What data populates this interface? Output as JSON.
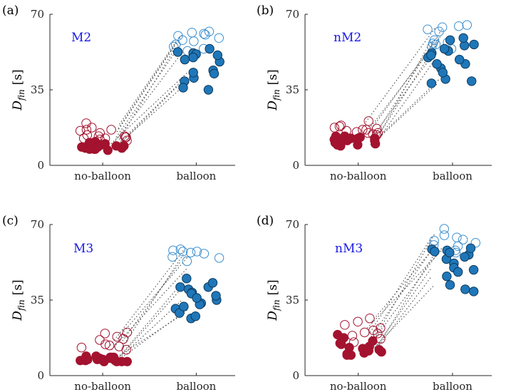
{
  "figure": {
    "colors": {
      "red_fill": "#a3122e",
      "red_edge": "#a3122e",
      "blue_fill": "#1f77b9",
      "blue_edge": "#0e3a5c",
      "hollow_blue": "#3a8fd0",
      "link": "#555555",
      "title": "#1a1ae6"
    }
  },
  "chart_data": [
    {
      "type": "scatter",
      "panel_label": "(a)",
      "title": "M2",
      "ylabel": "D",
      "ylabel_sub": "fin",
      "ylabel_unit": "[s]",
      "categories": [
        "no-balloon",
        "balloon"
      ],
      "yticks": [
        "0",
        "35",
        "70"
      ],
      "ylim": [
        0,
        70
      ],
      "pairs": [
        {
          "nb_open": 15.5,
          "b_open": 61.0,
          "nb_closed": 9.0,
          "b_closed": 50.0
        },
        {
          "nb_open": 13.0,
          "b_open": 57.0,
          "nb_closed": 10.0,
          "b_closed": 43.0
        },
        {
          "nb_open": 17.0,
          "b_open": 60.0,
          "nb_closed": 8.0,
          "b_closed": 41.0
        },
        {
          "nb_open": 12.0,
          "b_open": 55.0,
          "nb_closed": 8.5,
          "b_closed": 37.0
        },
        {
          "nb_open": 19.0,
          "b_open": 58.0,
          "nb_closed": 9.5,
          "b_closed": 36.0
        }
      ],
      "series": [
        {
          "name": "no-balloon hollow",
          "style": "open-red",
          "values": [
            16.5,
            16.0,
            13.5,
            13.0,
            12.5,
            12.0,
            13.0,
            14.0,
            13.5,
            12.5,
            16.5,
            17.5,
            19.5,
            11.5,
            15.0
          ]
        },
        {
          "name": "no-balloon filled",
          "style": "filled-red",
          "values": [
            10.5,
            10.0,
            7.5,
            8.0,
            9.0,
            11.0,
            7.5,
            8.5,
            9.0,
            7.5,
            8.0,
            9.5,
            10.5,
            7.0,
            8.5
          ]
        },
        {
          "name": "balloon hollow",
          "style": "open-blue",
          "values": [
            62.0,
            61.0,
            60.0,
            58.0,
            57.5,
            56.0,
            55.0,
            61.5,
            60.5,
            54.0,
            59.0,
            53.0
          ]
        },
        {
          "name": "balloon filled",
          "style": "filled-blue",
          "values": [
            52.0,
            51.5,
            50.0,
            44.0,
            40.5,
            43.0,
            39.0,
            36.0,
            35.0,
            52.5,
            49.0,
            54.0,
            42.5,
            48.0,
            51.0
          ]
        }
      ]
    },
    {
      "type": "scatter",
      "panel_label": "(b)",
      "title": "nM2",
      "ylabel": "D",
      "ylabel_sub": "fin",
      "ylabel_unit": "[s]",
      "categories": [
        "no-balloon",
        "balloon"
      ],
      "yticks": [
        "0",
        "35",
        "70"
      ],
      "ylim": [
        0,
        70
      ],
      "pairs": [
        {
          "nb_open": 16.0,
          "b_open": 63.0,
          "nb_closed": 11.0,
          "b_closed": 58.0
        },
        {
          "nb_open": 20.0,
          "b_open": 64.0,
          "nb_closed": 12.0,
          "b_closed": 52.0
        },
        {
          "nb_open": 18.0,
          "b_open": 60.0,
          "nb_closed": 10.5,
          "b_closed": 49.0
        },
        {
          "nb_open": 14.0,
          "b_open": 58.0,
          "nb_closed": 9.5,
          "b_closed": 40.0
        },
        {
          "nb_open": 17.0,
          "b_open": 56.0,
          "nb_closed": 13.0,
          "b_closed": 38.0
        }
      ],
      "series": [
        {
          "name": "no-balloon hollow",
          "style": "open-red",
          "values": [
            17.0,
            16.5,
            15.5,
            18.0,
            14.5,
            15.0,
            16.0,
            17.5,
            18.5,
            20.5,
            15.0,
            16.5,
            14.0
          ]
        },
        {
          "name": "no-balloon filled",
          "style": "filled-red",
          "values": [
            13.5,
            12.5,
            11.0,
            10.5,
            9.5,
            12.0,
            13.0,
            11.5,
            10.0,
            9.0,
            12.5,
            13.5,
            11.5,
            9.5,
            11.0,
            12.5
          ]
        },
        {
          "name": "balloon hollow",
          "style": "open-blue",
          "values": [
            62.0,
            64.0,
            65.0,
            58.0,
            56.0,
            63.0,
            64.5,
            55.0,
            57.0,
            56.5,
            54.0
          ]
        },
        {
          "name": "balloon filled",
          "style": "filled-blue",
          "values": [
            53.0,
            50.0,
            47.0,
            58.0,
            55.5,
            54.0,
            56.0,
            59.0,
            49.0,
            45.0,
            40.0,
            38.0,
            39.0,
            52.0,
            51.0,
            47.0,
            43.0
          ]
        }
      ]
    },
    {
      "type": "scatter",
      "panel_label": "(c)",
      "title": "M3",
      "ylabel": "D",
      "ylabel_sub": "fin",
      "ylabel_unit": "[s]",
      "categories": [
        "no-balloon",
        "balloon"
      ],
      "yticks": [
        "0",
        "35",
        "70"
      ],
      "ylim": [
        0,
        70
      ],
      "pairs": [
        {
          "nb_open": 14.0,
          "b_open": 58.0,
          "nb_closed": 7.0,
          "b_closed": 42.0
        },
        {
          "nb_open": 17.0,
          "b_open": 55.0,
          "nb_closed": 7.5,
          "b_closed": 40.0
        },
        {
          "nb_open": 12.0,
          "b_open": 50.0,
          "nb_closed": 8.0,
          "b_closed": 35.0
        },
        {
          "nb_open": 13.5,
          "b_open": 57.0,
          "nb_closed": 6.5,
          "b_closed": 31.0
        },
        {
          "nb_open": 16.0,
          "b_open": 53.0,
          "nb_closed": 8.5,
          "b_closed": 29.0
        }
      ],
      "series": [
        {
          "name": "no-balloon hollow",
          "style": "open-red",
          "values": [
            18.0,
            17.0,
            19.5,
            20.0,
            14.0,
            13.5,
            16.5,
            13.0,
            12.0,
            14.5
          ]
        },
        {
          "name": "no-balloon filled",
          "style": "filled-red",
          "values": [
            8.5,
            7.5,
            7.0,
            6.5,
            7.5,
            8.0,
            6.5,
            8.5,
            7.0,
            9.0,
            7.5,
            6.5,
            8.0,
            7.0,
            8.5,
            9.0,
            7.5,
            6.5
          ]
        },
        {
          "name": "balloon hollow",
          "style": "open-blue",
          "values": [
            53.0,
            55.0,
            54.5,
            57.5,
            58.0,
            57.0,
            58.5,
            56.5,
            57.5
          ]
        },
        {
          "name": "balloon filled",
          "style": "filled-blue",
          "values": [
            41.0,
            45.0,
            35.0,
            33.5,
            26.5,
            43.0,
            41.0,
            40.0,
            38.5,
            37.0,
            33.0,
            31.0,
            29.0,
            27.5,
            32.0,
            38.0,
            36.0
          ]
        }
      ]
    },
    {
      "type": "scatter",
      "panel_label": "(d)",
      "title": "nM3",
      "ylabel": "D",
      "ylabel_sub": "fin",
      "ylabel_unit": "[s]",
      "categories": [
        "no-balloon",
        "balloon"
      ],
      "yticks": [
        "0",
        "35",
        "70"
      ],
      "ylim": [
        0,
        70
      ],
      "pairs": [
        {
          "nb_open": 20.0,
          "b_open": 64.0,
          "nb_closed": 12.0,
          "b_closed": 59.0
        },
        {
          "nb_open": 25.0,
          "b_open": 62.0,
          "nb_closed": 14.0,
          "b_closed": 55.0
        },
        {
          "nb_open": 18.0,
          "b_open": 60.0,
          "nb_closed": 10.0,
          "b_closed": 50.0
        },
        {
          "nb_open": 22.0,
          "b_open": 58.0,
          "nb_closed": 13.0,
          "b_closed": 46.0
        },
        {
          "nb_open": 16.0,
          "b_open": 66.0,
          "nb_closed": 11.0,
          "b_closed": 42.0
        }
      ],
      "series": [
        {
          "name": "no-balloon hollow",
          "style": "open-red",
          "values": [
            26.5,
            25.0,
            23.5,
            20.0,
            19.5,
            17.0,
            18.5,
            22.0,
            21.0,
            15.5
          ]
        },
        {
          "name": "no-balloon filled",
          "style": "filled-red",
          "values": [
            19.0,
            17.5,
            15.0,
            13.5,
            12.5,
            11.0,
            10.0,
            9.5,
            13.0,
            14.5,
            12.0,
            10.5,
            16.0,
            11.5,
            9.5
          ]
        },
        {
          "name": "balloon hollow",
          "style": "open-blue",
          "values": [
            64.0,
            62.5,
            63.0,
            61.5,
            60.0,
            68.0,
            65.0,
            58.0,
            57.0,
            60.5
          ]
        },
        {
          "name": "balloon filled",
          "style": "filled-blue",
          "values": [
            58.0,
            56.0,
            55.0,
            52.0,
            50.0,
            48.0,
            46.0,
            58.5,
            57.5,
            54.0,
            49.0,
            40.0,
            39.0,
            42.0,
            59.0,
            57.0
          ]
        }
      ]
    }
  ]
}
